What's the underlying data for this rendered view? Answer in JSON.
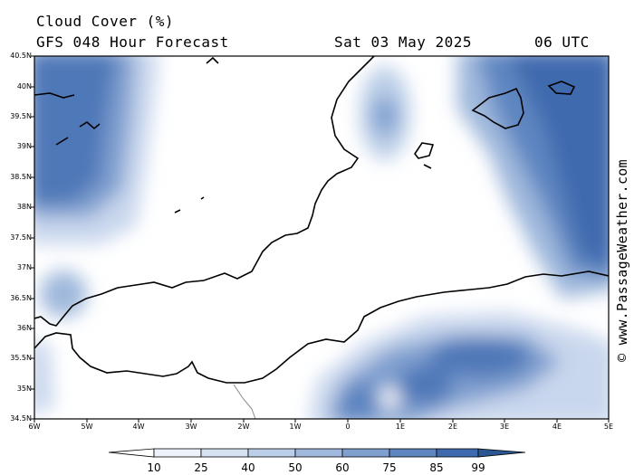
{
  "header": {
    "title": "Cloud Cover (%)",
    "subtitle": "GFS 048 Hour Forecast",
    "date": "Sat 03 May 2025",
    "time": "06 UTC"
  },
  "watermark": "© www.PassageWeather.com",
  "latitude_labels": [
    "40.5N",
    "40N",
    "39.5N",
    "39N",
    "38.5N",
    "38N",
    "37.5N",
    "37N",
    "36.5N",
    "36N",
    "35.5N",
    "35N",
    "34.5N"
  ],
  "longitude_labels": [
    "6W",
    "5W",
    "4W",
    "3W",
    "2W",
    "1W",
    "0",
    "1E",
    "2E",
    "3E",
    "4E",
    "5E"
  ],
  "legend": {
    "values": [
      "10",
      "25",
      "40",
      "50",
      "60",
      "75",
      "85",
      "99"
    ],
    "colors": [
      "#ffffff",
      "#eef2fa",
      "#d6e1f1",
      "#bccfe8",
      "#9fb8dc",
      "#7f9fcf",
      "#5e86c1",
      "#3f6aae",
      "#2c5691"
    ]
  },
  "colors": {
    "coast": "#000000",
    "border": "#8a8a8a",
    "frame": "#000000"
  }
}
